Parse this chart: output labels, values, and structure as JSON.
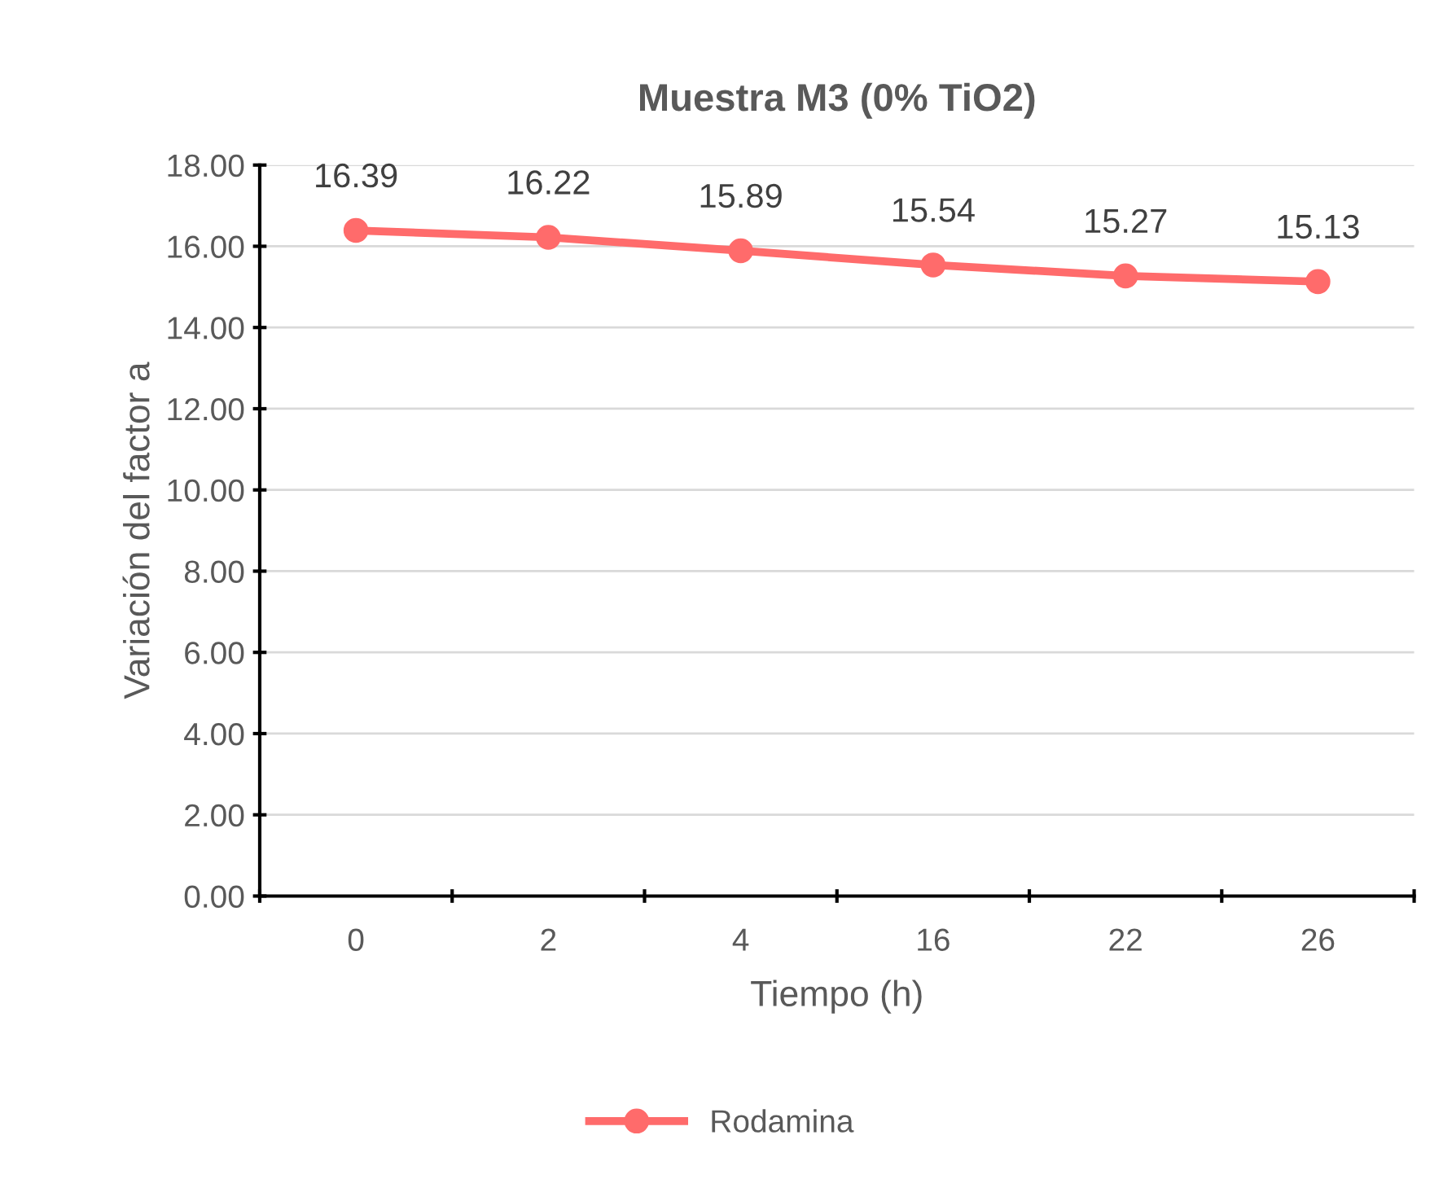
{
  "chart_data": {
    "type": "line",
    "title": "Muestra M3 (0% TiO2)",
    "xlabel": "Tiempo (h)",
    "ylabel": "Variación del factor a",
    "categories": [
      "0",
      "2",
      "4",
      "16",
      "22",
      "26"
    ],
    "series": [
      {
        "name": "Rodamina",
        "color": "#ff6b6b",
        "values": [
          16.39,
          16.22,
          15.89,
          15.54,
          15.27,
          15.13
        ]
      }
    ],
    "ylim": [
      0,
      18
    ],
    "yticks": [
      {
        "value": 0,
        "label": "0.00"
      },
      {
        "value": 2,
        "label": "2.00"
      },
      {
        "value": 4,
        "label": "4.00"
      },
      {
        "value": 6,
        "label": "6.00"
      },
      {
        "value": 8,
        "label": "8.00"
      },
      {
        "value": 10,
        "label": "10.00"
      },
      {
        "value": 12,
        "label": "12.00"
      },
      {
        "value": 14,
        "label": "14.00"
      },
      {
        "value": 16,
        "label": "16.00"
      },
      {
        "value": 18,
        "label": "18.00"
      }
    ],
    "grid": "y",
    "legend": "bottom",
    "marker": "circle",
    "line_style": "solid",
    "data_labels": true
  }
}
